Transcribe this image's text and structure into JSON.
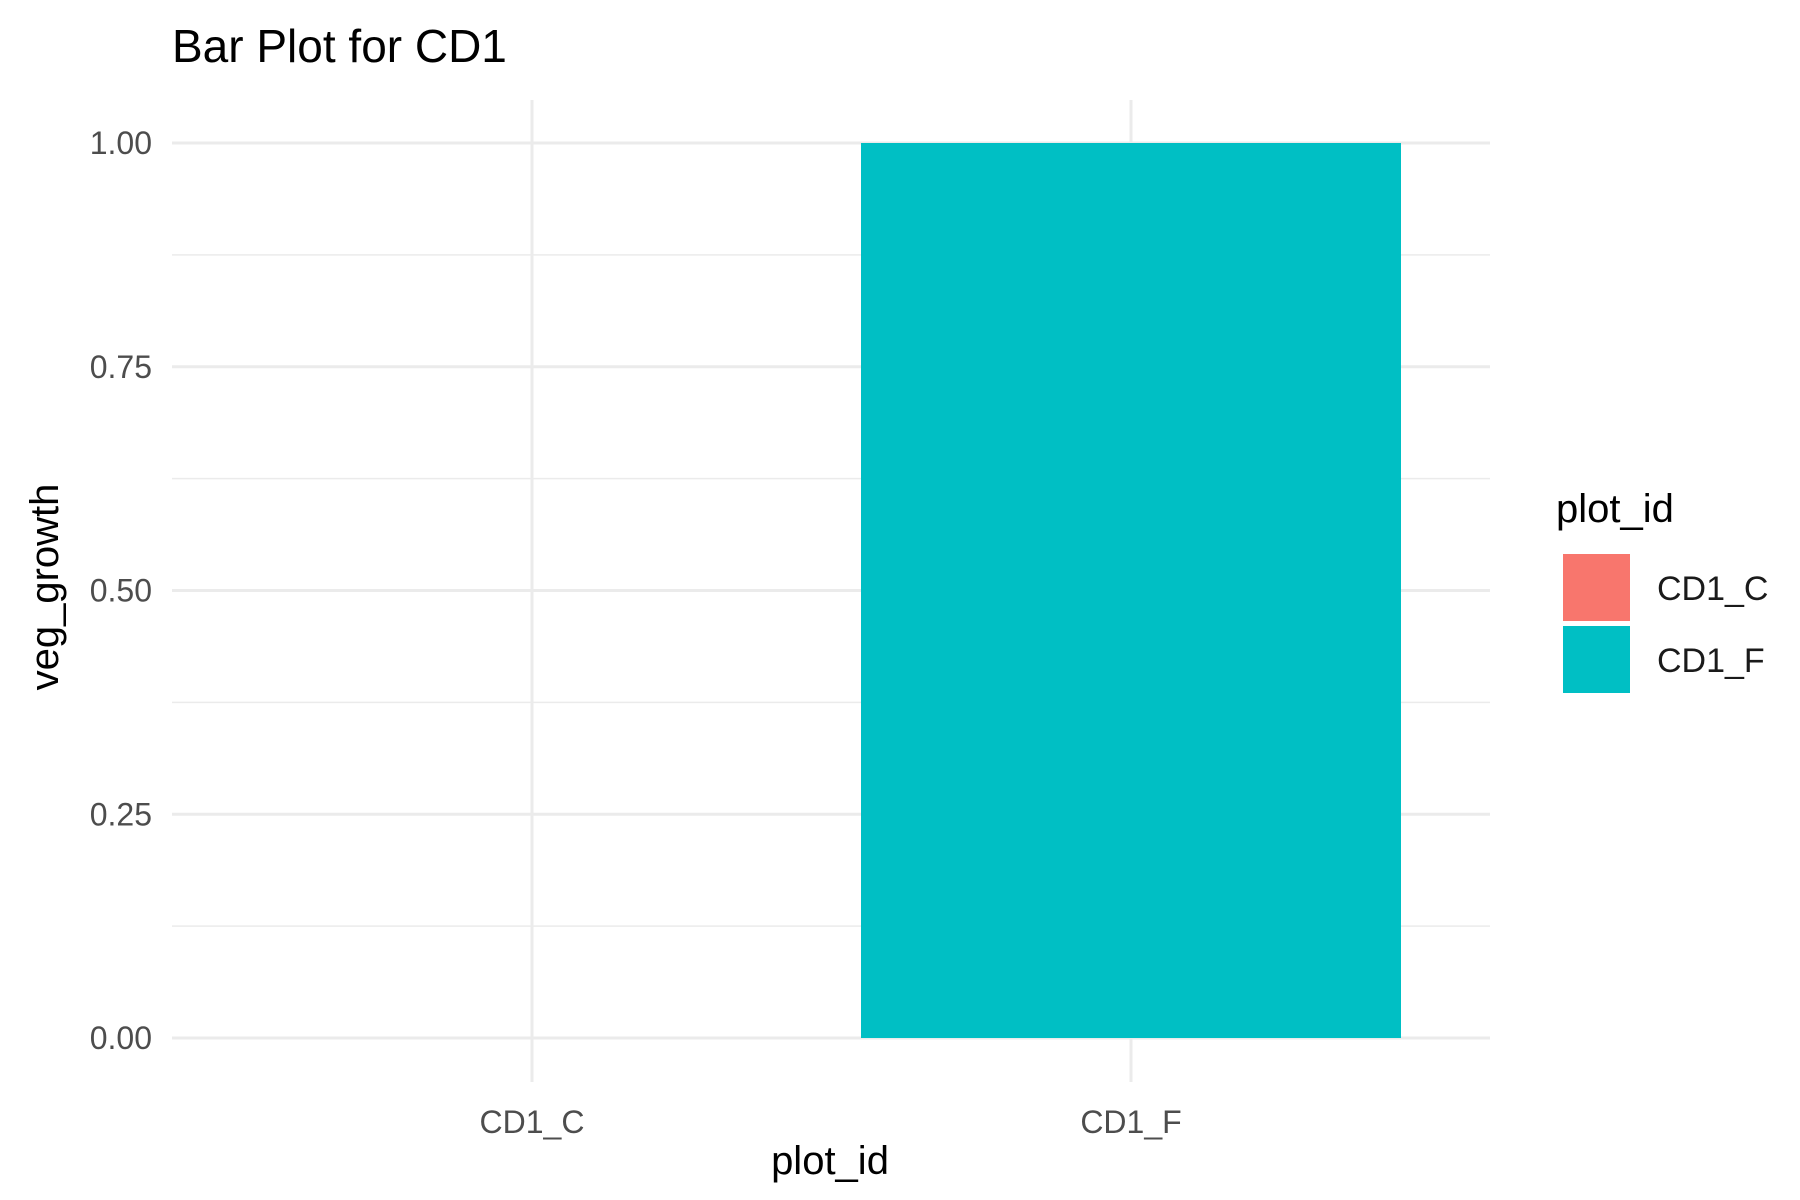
{
  "chart_data": {
    "type": "bar",
    "title": "Bar Plot for CD1",
    "xlabel": "plot_id",
    "ylabel": "veg_growth",
    "categories": [
      "CD1_C",
      "CD1_F"
    ],
    "values": [
      0,
      1
    ],
    "ylim": [
      0,
      1
    ],
    "yticks": [
      "0.00",
      "0.25",
      "0.50",
      "0.75",
      "1.00"
    ],
    "grid": true,
    "legend": {
      "title": "plot_id",
      "placement": "right",
      "entries": [
        {
          "label": "CD1_C",
          "color": "#F8766D"
        },
        {
          "label": "CD1_F",
          "color": "#00BFC4"
        }
      ]
    }
  }
}
